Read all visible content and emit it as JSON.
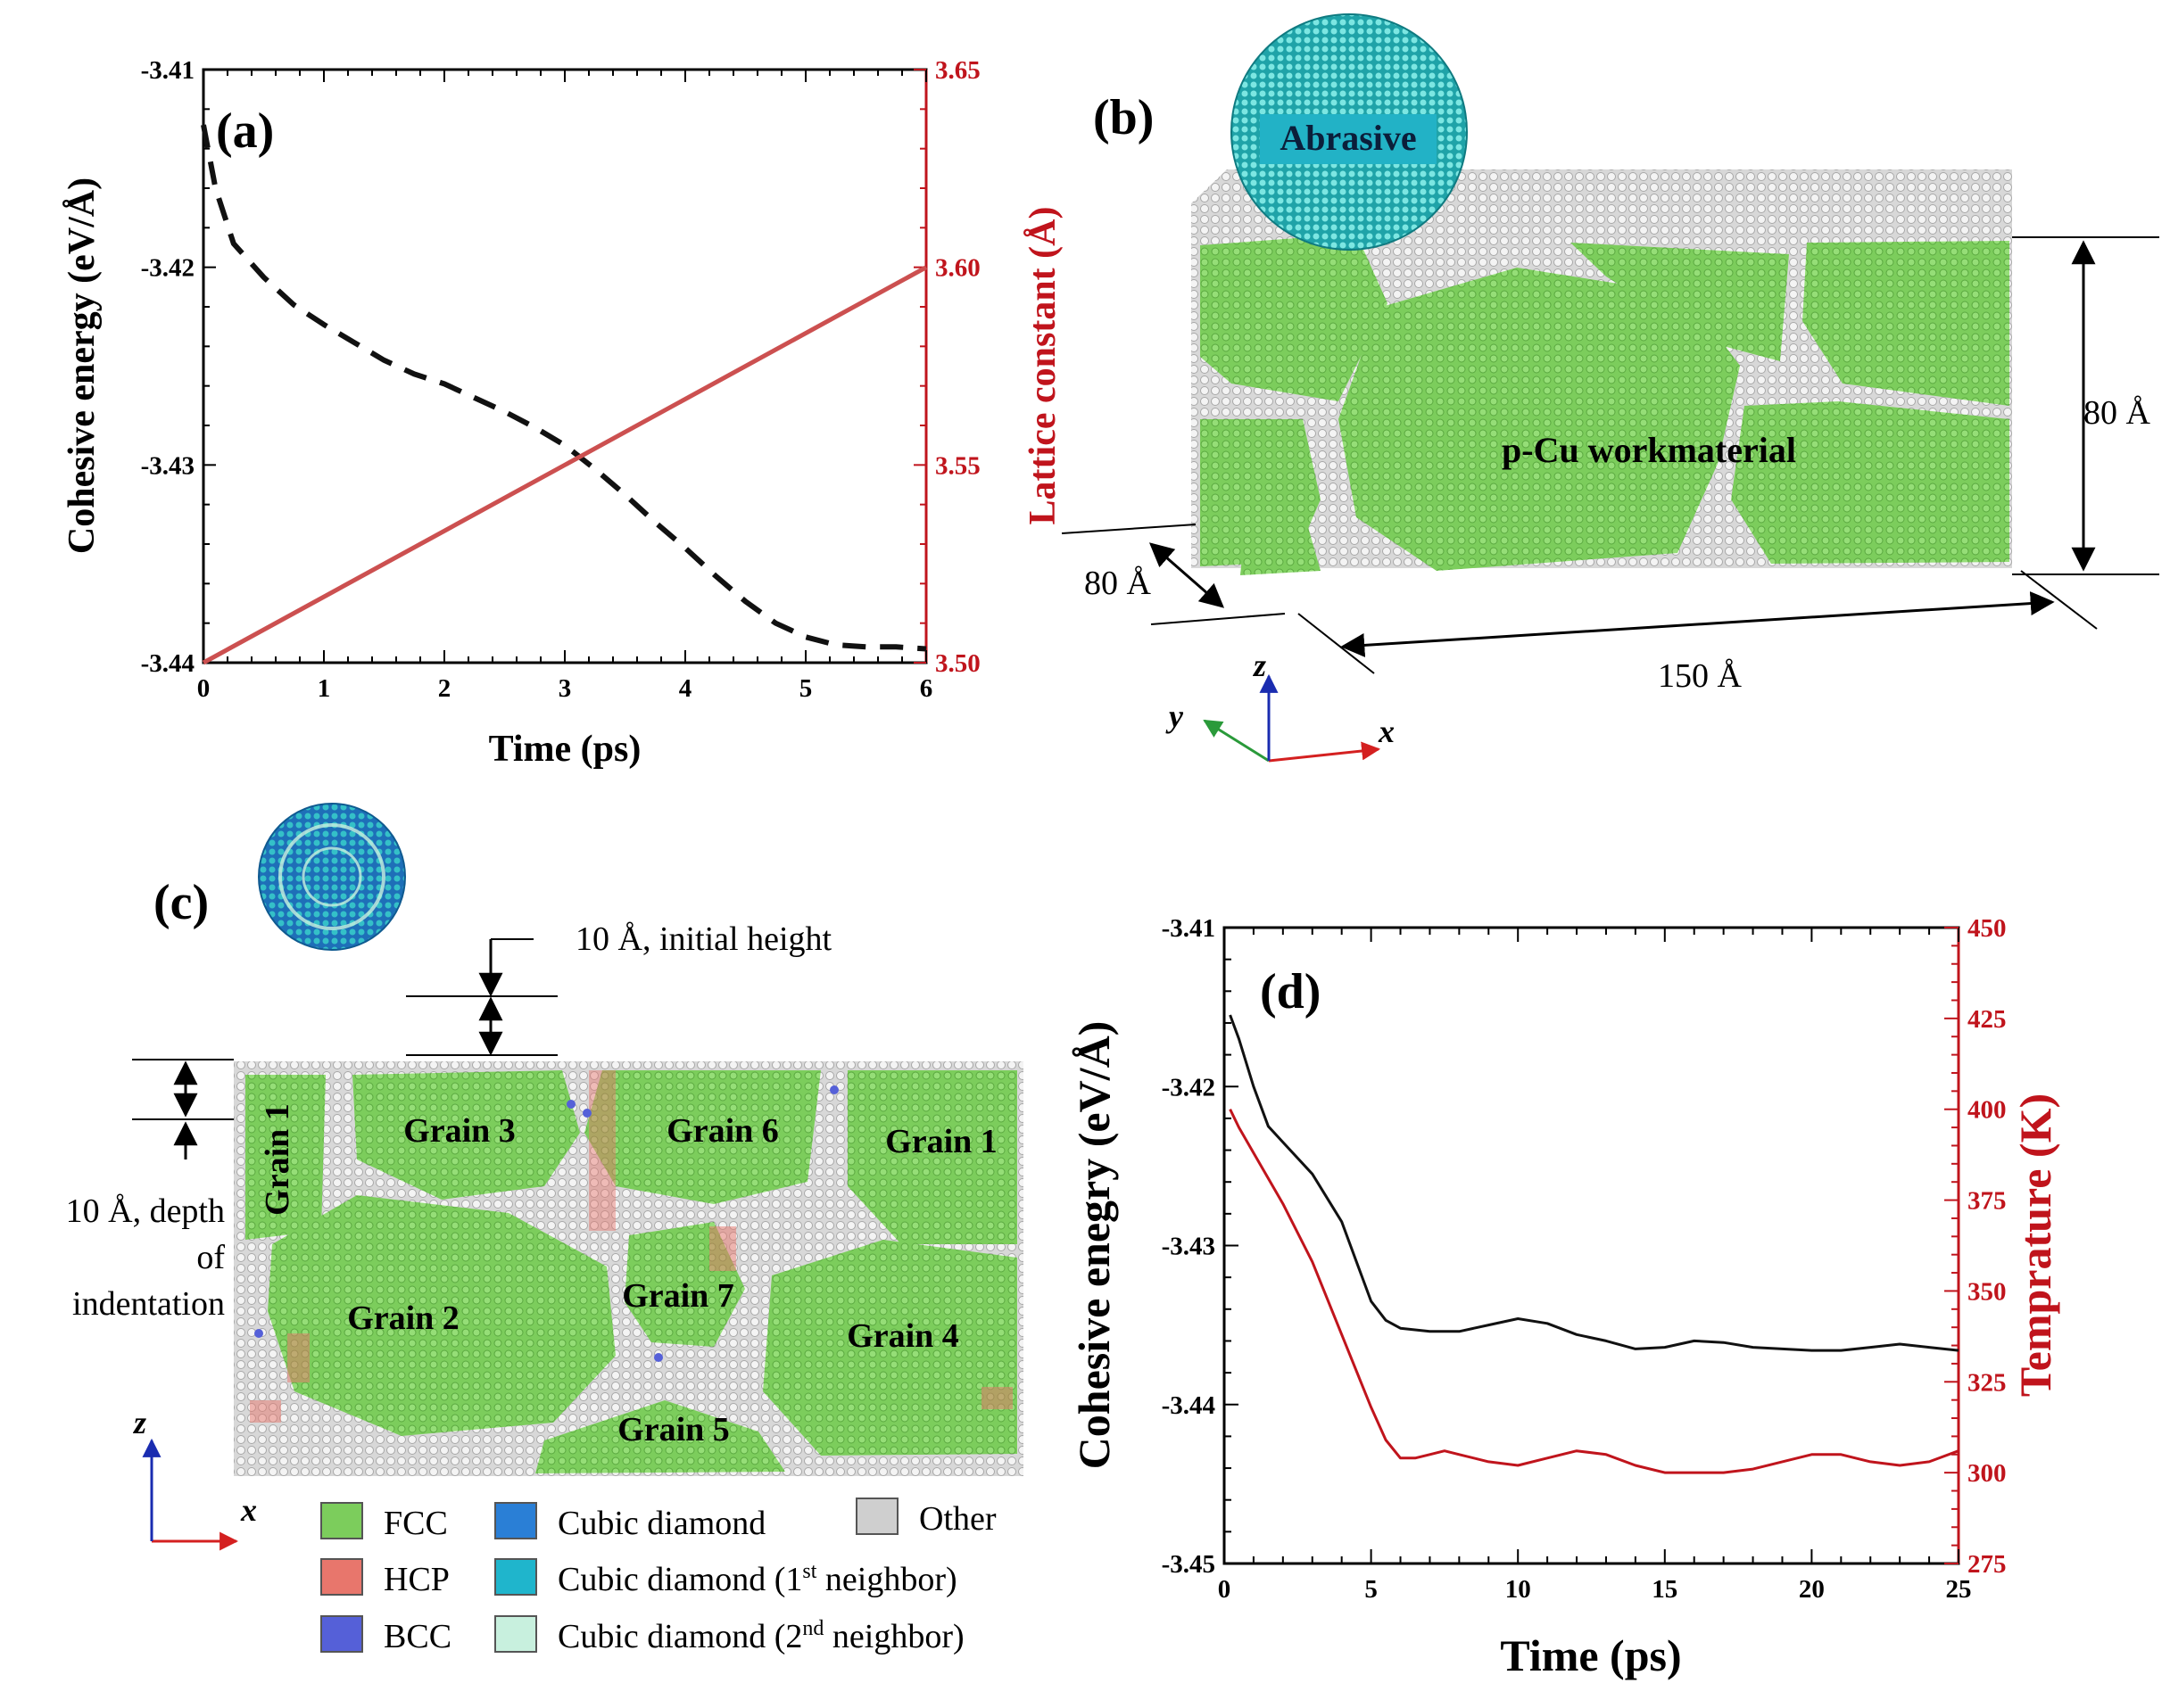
{
  "colors": {
    "energy_line": "#111111",
    "red": "#c0141c",
    "red_line_a": "#cc5050",
    "fcc": "#7ccd5c",
    "hcp": "#e8766c",
    "bcc": "#5560d8",
    "cubic": "#2a7fd6",
    "cubic1": "#1fb5cc",
    "cubic2": "#c8f0de",
    "other": "#cfcfcf",
    "axis_x": "#d42020",
    "axis_y": "#2a9a3a",
    "axis_z": "#1a2cb0"
  },
  "chart_data": [
    {
      "id": "a",
      "panel_label": "(a)",
      "type": "line",
      "xlabel": "Time (ps)",
      "ylabel": "Cohesive energy (eV/Å)",
      "y2label": "Lattice constant (Å)",
      "xlim": [
        0,
        6
      ],
      "ylim": [
        -3.44,
        -3.41
      ],
      "y2lim": [
        3.5,
        3.65
      ],
      "xticks": [
        0,
        1,
        2,
        3,
        4,
        5,
        6
      ],
      "xtick_labels": [
        "0",
        "1",
        "2",
        "3",
        "4",
        "5",
        "6"
      ],
      "yticks": [
        -3.44,
        -3.43,
        -3.42,
        -3.41
      ],
      "ytick_labels": [
        "-3.44",
        "-3.43",
        "-3.42",
        "-3.41"
      ],
      "y2ticks": [
        3.5,
        3.55,
        3.6,
        3.65
      ],
      "y2tick_labels": [
        "3.50",
        "3.55",
        "3.60",
        "3.65"
      ],
      "series": [
        {
          "name": "Cohesive energy",
          "axis": "left",
          "style": "dashed",
          "x": [
            0,
            0.1,
            0.25,
            0.5,
            0.75,
            1.0,
            1.25,
            1.5,
            1.75,
            2.0,
            2.25,
            2.5,
            2.75,
            3.0,
            3.25,
            3.5,
            3.75,
            4.0,
            4.25,
            4.5,
            4.75,
            5.0,
            5.25,
            5.5,
            5.75,
            6.0
          ],
          "y": [
            -3.4128,
            -3.416,
            -3.4188,
            -3.4205,
            -3.4219,
            -3.4229,
            -3.4238,
            -3.4247,
            -3.4254,
            -3.4259,
            -3.4266,
            -3.4273,
            -3.4281,
            -3.429,
            -3.4302,
            -3.4315,
            -3.4329,
            -3.4342,
            -3.4356,
            -3.4369,
            -3.438,
            -3.4387,
            -3.4391,
            -3.4392,
            -3.4392,
            -3.4393
          ]
        },
        {
          "name": "Lattice constant",
          "axis": "right",
          "style": "solid",
          "x": [
            0,
            6
          ],
          "y": [
            3.5,
            3.6
          ]
        }
      ]
    },
    {
      "id": "d",
      "panel_label": "(d)",
      "type": "line",
      "xlabel": "Time (ps)",
      "ylabel": "Cohesive enegry (eV/Å)",
      "y2label": "Temprature (K)",
      "xlim": [
        0,
        25
      ],
      "ylim": [
        -3.45,
        -3.41
      ],
      "y2lim": [
        275,
        450
      ],
      "xticks": [
        0,
        5,
        10,
        15,
        20,
        25
      ],
      "xtick_labels": [
        "0",
        "5",
        "10",
        "15",
        "20",
        "25"
      ],
      "yticks": [
        -3.45,
        -3.44,
        -3.43,
        -3.42,
        -3.41
      ],
      "ytick_labels": [
        "-3.45",
        "-3.44",
        "-3.43",
        "-3.42",
        "-3.41"
      ],
      "y2ticks": [
        275,
        300,
        325,
        350,
        375,
        400,
        425,
        450
      ],
      "y2tick_labels": [
        "275",
        "300",
        "325",
        "350",
        "375",
        "400",
        "425",
        "450"
      ],
      "series": [
        {
          "name": "Cohesive energy",
          "axis": "left",
          "style": "solid",
          "x": [
            0.2,
            0.5,
            1.0,
            1.5,
            2.0,
            3.0,
            4.0,
            4.5,
            5.0,
            5.5,
            6.0,
            7.0,
            8.0,
            9.0,
            10.0,
            11.0,
            12.0,
            13.0,
            14.0,
            15.0,
            16.0,
            17.0,
            18.0,
            19.0,
            20.0,
            21.0,
            22.0,
            23.0,
            24.0,
            25.0
          ],
          "y": [
            -3.4155,
            -3.417,
            -3.42,
            -3.4225,
            -3.4235,
            -3.4255,
            -3.4285,
            -3.431,
            -3.4335,
            -3.4347,
            -3.4352,
            -3.4354,
            -3.4354,
            -3.435,
            -3.4346,
            -3.4349,
            -3.4356,
            -3.436,
            -3.4365,
            -3.4364,
            -3.436,
            -3.4361,
            -3.4364,
            -3.4365,
            -3.4366,
            -3.4366,
            -3.4364,
            -3.4362,
            -3.4364,
            -3.4366
          ]
        },
        {
          "name": "Temperature",
          "axis": "right",
          "style": "solid",
          "x": [
            0.2,
            0.5,
            1.0,
            2.0,
            3.0,
            4.0,
            5.0,
            5.5,
            6.0,
            6.5,
            7.0,
            7.5,
            8.0,
            9.0,
            10.0,
            11.0,
            12.0,
            13.0,
            14.0,
            15.0,
            16.0,
            17.0,
            18.0,
            19.0,
            20.0,
            21.0,
            22.0,
            23.0,
            24.0,
            25.0
          ],
          "y": [
            400,
            395,
            388,
            374,
            358,
            338,
            318,
            309,
            304,
            304,
            305,
            306,
            305,
            303,
            302,
            304,
            306,
            305,
            302,
            300,
            300,
            300,
            301,
            303,
            305,
            305,
            303,
            302,
            303,
            306
          ]
        }
      ]
    }
  ],
  "panel_b": {
    "label": "(b)",
    "abrasive_label": "Abrasive",
    "workmaterial_label": "p-Cu workmaterial",
    "dim_height": "80 Å",
    "dim_depth": "80 Å",
    "dim_length": "150 Å",
    "axis_x": "x",
    "axis_y": "y",
    "axis_z": "z"
  },
  "panel_c": {
    "label": "(c)",
    "initial_height_label": "10 Å, initial height",
    "depth_label_1": "10 Å, depth",
    "depth_label_2": "of",
    "depth_label_3": "indentation",
    "grains": [
      "Grain 1",
      "Grain 3",
      "Grain 6",
      "Grain 1",
      "Grain 2",
      "Grain 7",
      "Grain 4",
      "Grain 5"
    ],
    "axis_x": "x",
    "axis_z": "z",
    "legend": [
      {
        "label": "FCC",
        "color_key": "fcc"
      },
      {
        "label": "HCP",
        "color_key": "hcp"
      },
      {
        "label": "BCC",
        "color_key": "bcc"
      },
      {
        "label": "Cubic diamond",
        "color_key": "cubic"
      },
      {
        "label": "Cubic diamond (1",
        "sup": "st",
        "rest": " neighbor)",
        "color_key": "cubic1"
      },
      {
        "label": "Cubic diamond (2",
        "sup": "nd",
        "rest": " neighbor)",
        "color_key": "cubic2"
      },
      {
        "label": "Other",
        "color_key": "other"
      }
    ]
  }
}
